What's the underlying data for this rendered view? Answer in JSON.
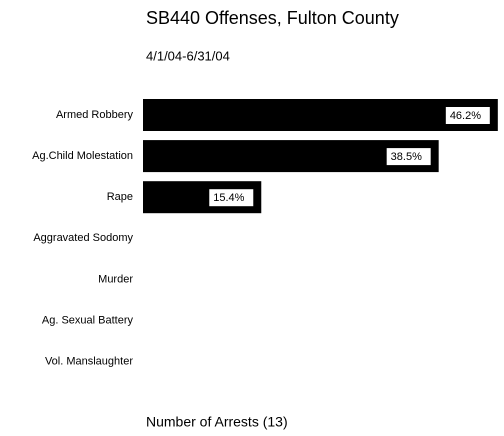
{
  "chart_data": {
    "type": "bar",
    "orientation": "horizontal",
    "title": "SB440 Offenses, Fulton County",
    "subtitle": "4/1/04-6/31/04",
    "x_label": "Number of Arrests (13)",
    "categories": [
      "Armed Robbery",
      "Ag.Child Molestation",
      "Rape",
      "Aggravated Sodomy",
      "Murder",
      "Ag. Sexual Battery",
      "Vol. Manslaughter"
    ],
    "values": [
      46.2,
      38.5,
      15.4,
      0,
      0,
      0,
      0
    ],
    "value_labels": [
      "46.2%",
      "38.5%",
      "15.4%",
      null,
      null,
      null,
      null
    ],
    "color": "#000000"
  }
}
